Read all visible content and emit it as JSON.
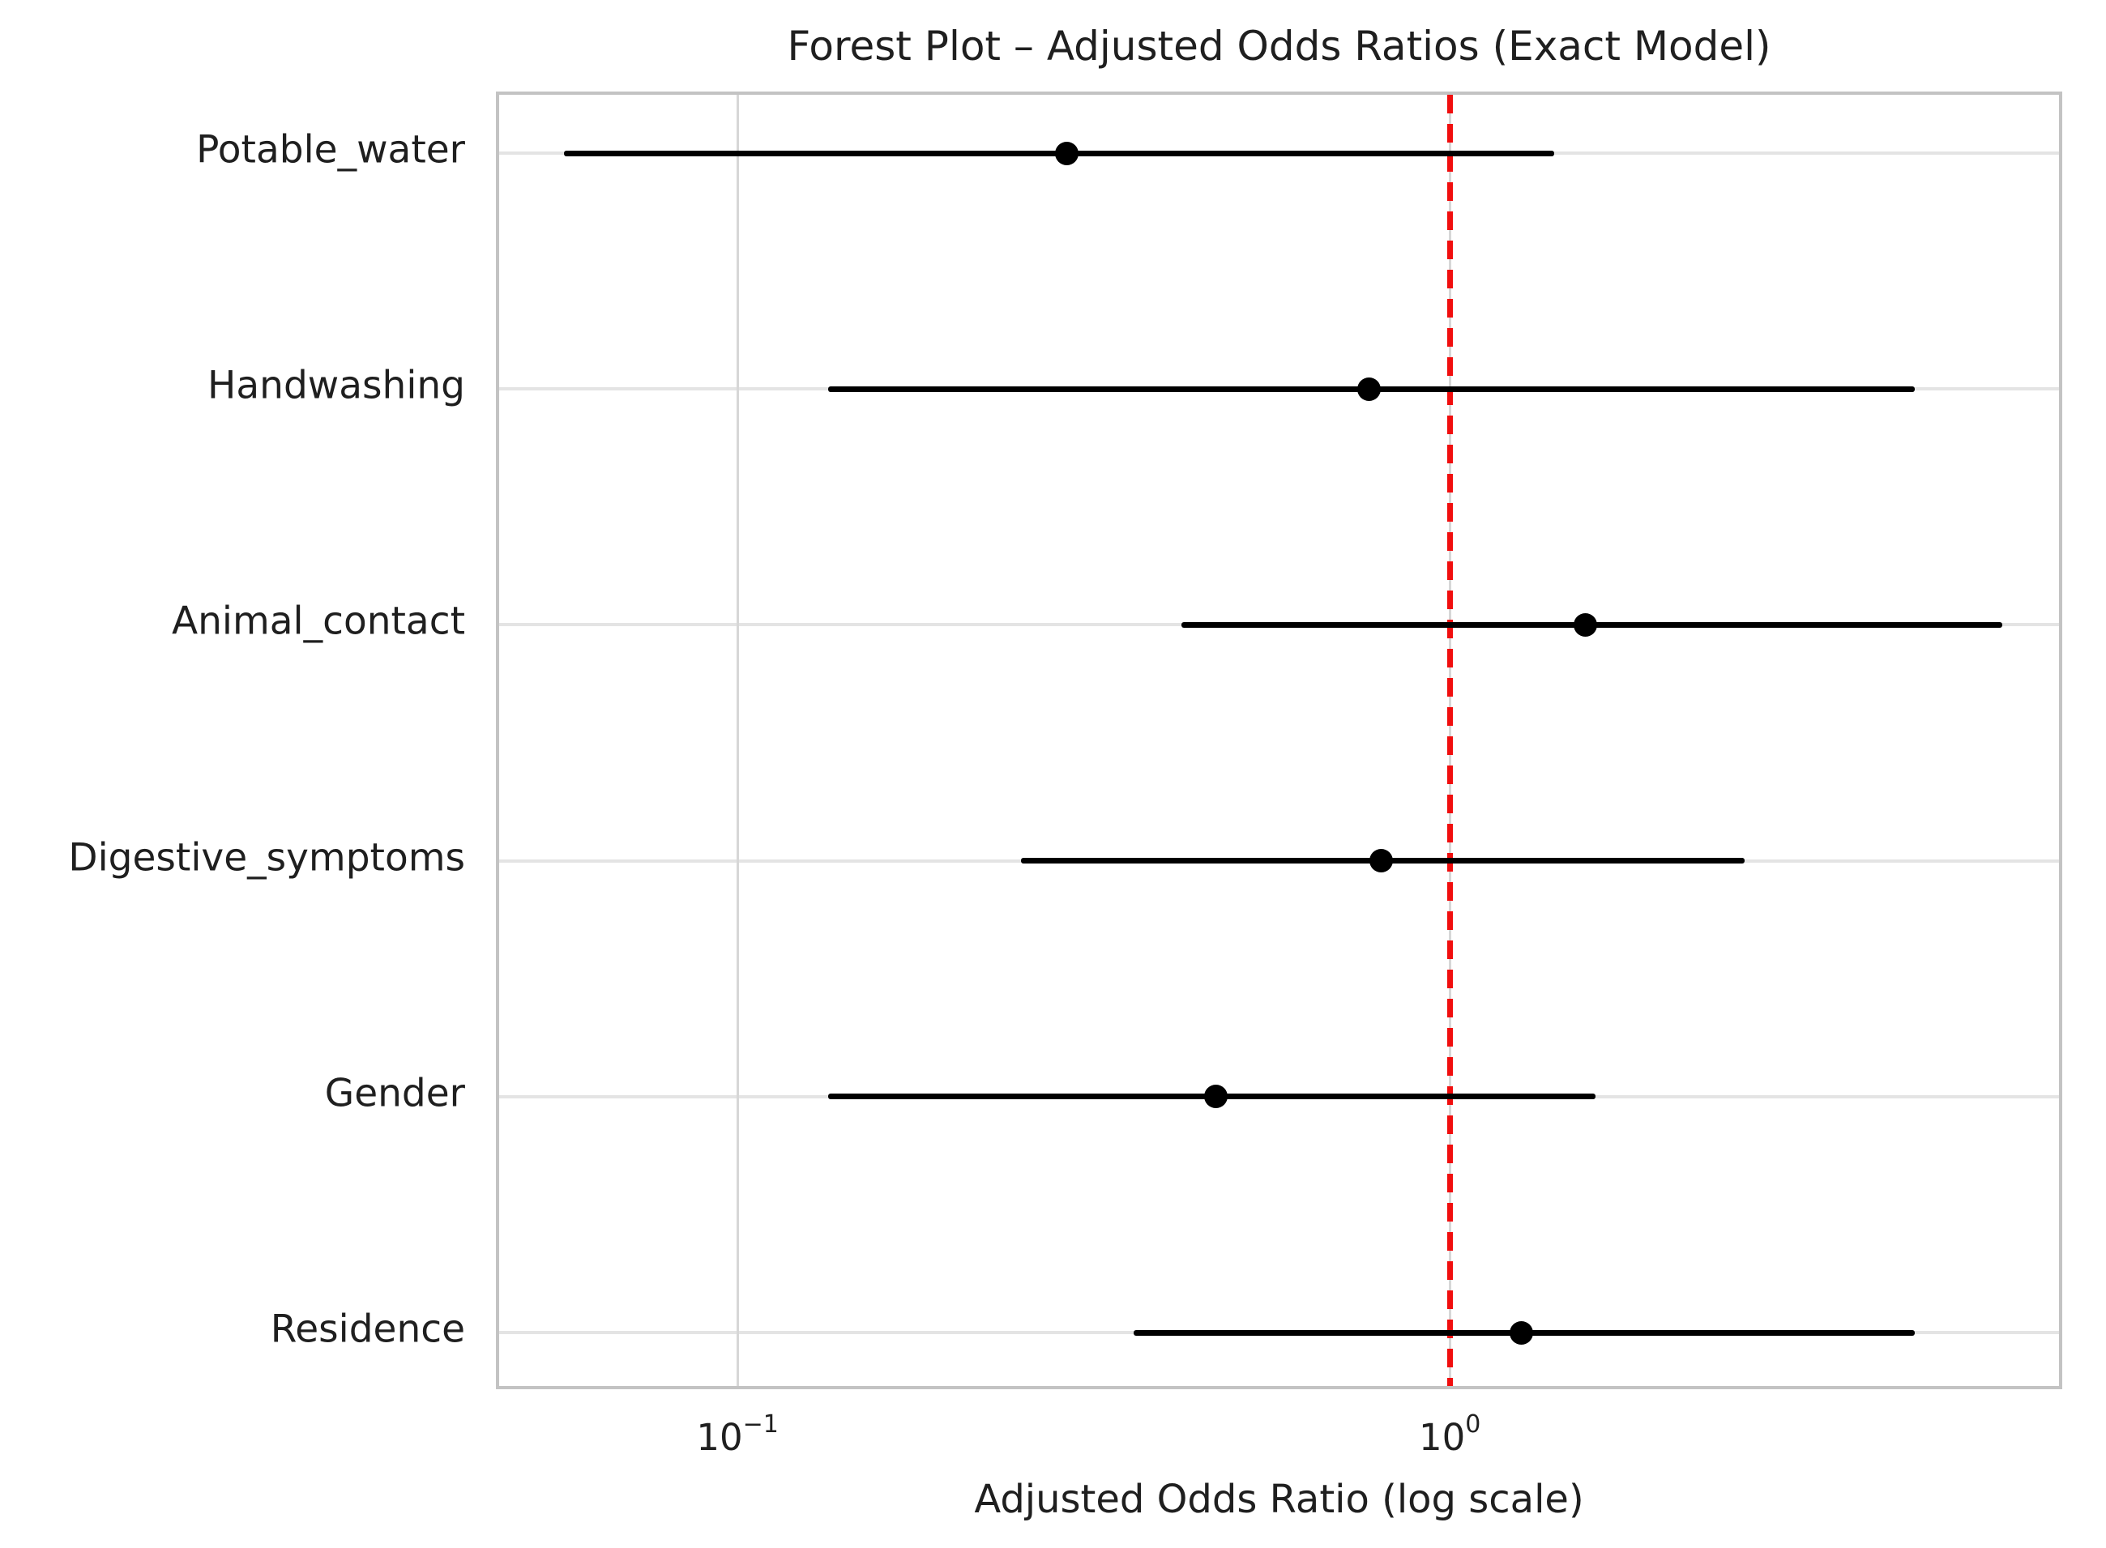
{
  "figure": {
    "background_color": "#ffffff",
    "text_color": "#1f1f1f",
    "spine_color": "#c3c3c3",
    "vgrid_color": "#d7d7d7",
    "hgrid_color": "#e4e4e4",
    "marker_color": "#000000",
    "ci_color": "#000000",
    "reference_line_color": "#f10e0e"
  },
  "chart_data": {
    "type": "scatter",
    "variant": "forest-plot",
    "orientation": "horizontal",
    "title": "Forest Plot – Adjusted Odds Ratios (Exact Model)",
    "xlabel": "Adjusted Odds Ratio (log scale)",
    "ylabel": "",
    "x_scale": "log10",
    "xlim": [
      0.0458,
      7.24
    ],
    "grid": true,
    "legend": false,
    "reference_line": {
      "value": 1.0,
      "style": "dashed",
      "color": "#f10e0e"
    },
    "x_ticks": [
      {
        "value": 0.1,
        "base": "10",
        "exp": "−1"
      },
      {
        "value": 1.0,
        "base": "10",
        "exp": "0"
      }
    ],
    "categories": [
      "Potable_water",
      "Handwashing",
      "Animal_contact",
      "Digestive_symptoms",
      "Gender",
      "Residence"
    ],
    "series": [
      {
        "name": "Adjusted Odds Ratio",
        "points": [
          {
            "label": "Potable_water",
            "or": 0.29,
            "ci_low": 0.057,
            "ci_high": 1.4
          },
          {
            "label": "Handwashing",
            "or": 0.77,
            "ci_low": 0.134,
            "ci_high": 4.49
          },
          {
            "label": "Animal_contact",
            "or": 1.55,
            "ci_low": 0.42,
            "ci_high": 5.97
          },
          {
            "label": "Digestive_symptoms",
            "or": 0.8,
            "ci_low": 0.25,
            "ci_high": 2.59
          },
          {
            "label": "Gender",
            "or": 0.47,
            "ci_low": 0.134,
            "ci_high": 1.6
          },
          {
            "label": "Residence",
            "or": 1.26,
            "ci_low": 0.36,
            "ci_high": 4.49
          }
        ]
      }
    ]
  }
}
